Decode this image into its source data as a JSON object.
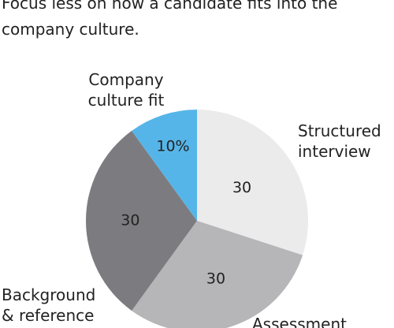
{
  "chart_data": {
    "type": "pie",
    "title": "Focus less on how a candidate fits into the company culture.",
    "categories": [
      "Structured interview",
      "Assessment",
      "Background & reference",
      "Company culture fit"
    ],
    "values": [
      30,
      30,
      30,
      10
    ],
    "value_labels": [
      "30",
      "30",
      "30",
      "10%"
    ],
    "colors": [
      "#ebebec",
      "#b6b6b9",
      "#7c7c80",
      "#56b5e8"
    ]
  }
}
